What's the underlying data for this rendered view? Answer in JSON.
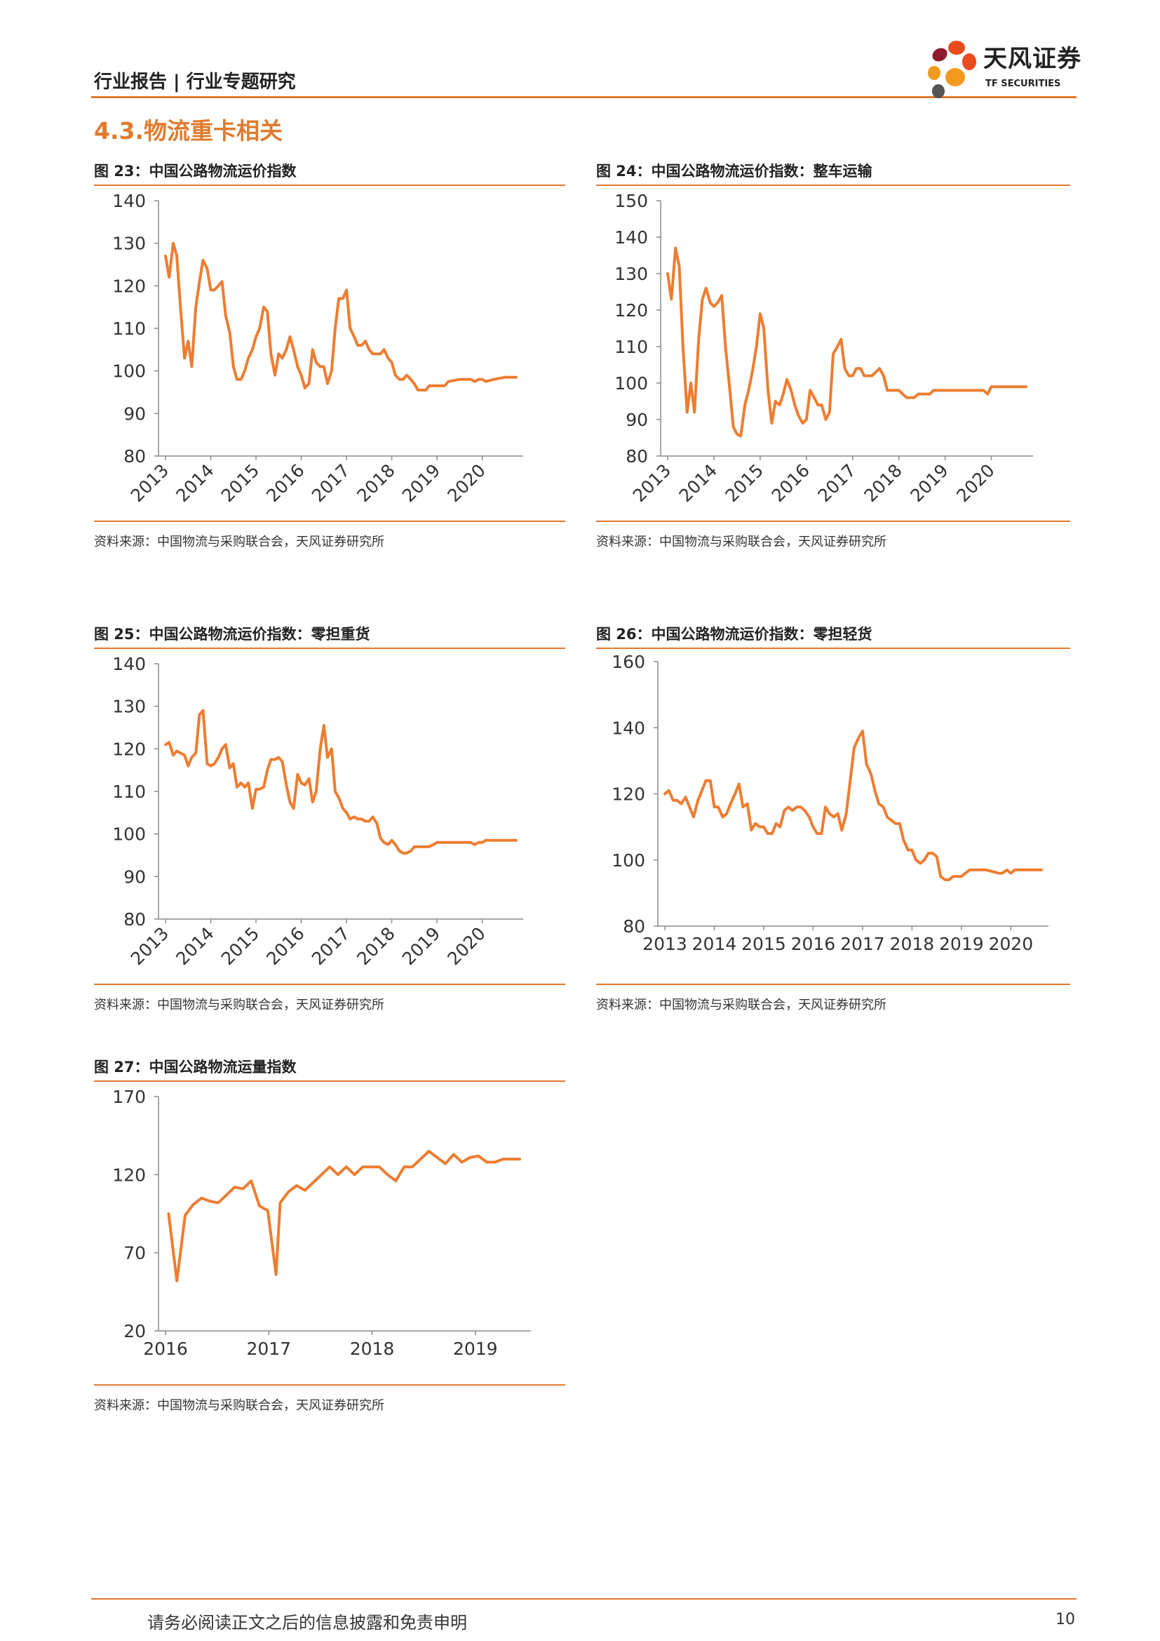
{
  "header": {
    "report_label": "行业报告 | 行业专题研究"
  },
  "logo": {
    "name_cn": "天风证券",
    "name_en": "TF SECURITIES",
    "petal_colors": [
      "#e84b1c",
      "#f39a1e",
      "#8e1c2e",
      "#555555"
    ]
  },
  "section_title": "4.3.物流重卡相关",
  "accent_color": "#e07a2e",
  "line_color": "#ed7d31",
  "figures": [
    {
      "title": "图 23：中国公路物流运价指数",
      "source": "资料来源：中国物流与采购联合会，天风证券研究所"
    },
    {
      "title": "图 24：中国公路物流运价指数：整车运输",
      "source": "资料来源：中国物流与采购联合会，天风证券研究所"
    },
    {
      "title": "图 25：中国公路物流运价指数：零担重货",
      "source": "资料来源：中国物流与采购联合会，天风证券研究所"
    },
    {
      "title": "图 26：中国公路物流运价指数：零担轻货",
      "source": "资料来源：中国物流与采购联合会，天风证券研究所"
    },
    {
      "title": "图 27：中国公路物流运量指数",
      "source": "资料来源：中国物流与采购联合会，天风证券研究所"
    }
  ],
  "chart_data": [
    {
      "type": "line",
      "title": "图 23：中国公路物流运价指数",
      "ylim": [
        80,
        140
      ],
      "yticks": [
        80,
        90,
        100,
        110,
        120,
        130,
        140
      ],
      "xlim": [
        2013,
        2020.75
      ],
      "xticks": [
        "2013",
        "2014",
        "2015",
        "2016",
        "2017",
        "2018",
        "2019",
        "2020"
      ],
      "xtick_rotation": -45,
      "grid": false,
      "x": [
        2013.0,
        2013.08,
        2013.17,
        2013.25,
        2013.33,
        2013.42,
        2013.5,
        2013.58,
        2013.67,
        2013.75,
        2013.83,
        2013.92,
        2014.0,
        2014.08,
        2014.17,
        2014.25,
        2014.33,
        2014.42,
        2014.5,
        2014.58,
        2014.67,
        2014.75,
        2014.83,
        2014.92,
        2015.0,
        2015.08,
        2015.17,
        2015.25,
        2015.33,
        2015.42,
        2015.5,
        2015.58,
        2015.67,
        2015.75,
        2015.83,
        2015.92,
        2016.0,
        2016.08,
        2016.17,
        2016.25,
        2016.33,
        2016.42,
        2016.5,
        2016.58,
        2016.67,
        2016.75,
        2016.83,
        2016.92,
        2017.0,
        2017.08,
        2017.17,
        2017.25,
        2017.33,
        2017.42,
        2017.5,
        2017.58,
        2017.67,
        2017.75,
        2017.83,
        2017.92,
        2018.0,
        2018.08,
        2018.17,
        2018.25,
        2018.33,
        2018.42,
        2018.5,
        2018.58,
        2018.67,
        2018.75,
        2018.83,
        2018.92,
        2019.0,
        2019.08,
        2019.17,
        2019.25,
        2019.5,
        2019.75,
        2019.83,
        2019.92,
        2020.0,
        2020.08,
        2020.25,
        2020.5,
        2020.75
      ],
      "series": [
        {
          "values": [
            127,
            122,
            130,
            127,
            115,
            103,
            107,
            101,
            115,
            121,
            126,
            124,
            119,
            119,
            120,
            121,
            113,
            109,
            101,
            98,
            98,
            100,
            103,
            105,
            108,
            110,
            115,
            114,
            104,
            99,
            104,
            103,
            105,
            108,
            105,
            101,
            99,
            96,
            97,
            105,
            102,
            101,
            101,
            97,
            100,
            110,
            117,
            117,
            119,
            110,
            108,
            106,
            106,
            107,
            105,
            104,
            104,
            104,
            105,
            103,
            102,
            99,
            98,
            98,
            99,
            98,
            97,
            95.5,
            95.5,
            95.5,
            96.5,
            96.5,
            96.5,
            96.5,
            96.5,
            97.5,
            98,
            98,
            97.5,
            98,
            98,
            97.5,
            98,
            98.5,
            98.5
          ]
        }
      ]
    },
    {
      "type": "line",
      "title": "图 24：中国公路物流运价指数：整车运输",
      "ylim": [
        80,
        150
      ],
      "yticks": [
        80,
        90,
        100,
        110,
        120,
        130,
        140,
        150
      ],
      "xlim": [
        2013,
        2020.75
      ],
      "xticks": [
        "2013",
        "2014",
        "2015",
        "2016",
        "2017",
        "2018",
        "2019",
        "2020"
      ],
      "xtick_rotation": -45,
      "grid": false,
      "x": [
        2013.0,
        2013.08,
        2013.17,
        2013.25,
        2013.33,
        2013.42,
        2013.5,
        2013.58,
        2013.67,
        2013.75,
        2013.83,
        2013.92,
        2014.0,
        2014.08,
        2014.17,
        2014.25,
        2014.33,
        2014.42,
        2014.5,
        2014.58,
        2014.67,
        2014.75,
        2014.83,
        2014.92,
        2015.0,
        2015.08,
        2015.17,
        2015.25,
        2015.33,
        2015.42,
        2015.5,
        2015.58,
        2015.67,
        2015.75,
        2015.83,
        2015.92,
        2016.0,
        2016.08,
        2016.17,
        2016.25,
        2016.33,
        2016.42,
        2016.5,
        2016.58,
        2016.67,
        2016.75,
        2016.83,
        2016.92,
        2017.0,
        2017.08,
        2017.17,
        2017.25,
        2017.33,
        2017.42,
        2017.5,
        2017.58,
        2017.67,
        2017.75,
        2017.83,
        2017.92,
        2018.0,
        2018.08,
        2018.17,
        2018.25,
        2018.33,
        2018.42,
        2018.5,
        2018.58,
        2018.67,
        2018.75,
        2018.83,
        2018.92,
        2019.0,
        2019.08,
        2019.17,
        2019.25,
        2019.5,
        2019.75,
        2019.83,
        2019.92,
        2020.0,
        2020.08,
        2020.25,
        2020.5,
        2020.75
      ],
      "series": [
        {
          "values": [
            130,
            123,
            137,
            132,
            110,
            92,
            100,
            92,
            112,
            123,
            126,
            122,
            121,
            122,
            124,
            110,
            100,
            88,
            86,
            85.5,
            94,
            98,
            103,
            110,
            119,
            115,
            98,
            89,
            95,
            94,
            97,
            101,
            98,
            94,
            91,
            89,
            90,
            98,
            96,
            94,
            94,
            90,
            92,
            108,
            110,
            112,
            104,
            102,
            102,
            104,
            104,
            102,
            102,
            102,
            103,
            104,
            102,
            98,
            98,
            98,
            98,
            97,
            96,
            96,
            96,
            97,
            97,
            97,
            97,
            98,
            98,
            98,
            98,
            98,
            98,
            98,
            98,
            98,
            98,
            97,
            99,
            99,
            99,
            99,
            99
          ]
        }
      ]
    },
    {
      "type": "line",
      "title": "图 25：中国公路物流运价指数：零担重货",
      "ylim": [
        80,
        140
      ],
      "yticks": [
        80,
        90,
        100,
        110,
        120,
        130,
        140
      ],
      "xlim": [
        2013,
        2020.75
      ],
      "xticks": [
        "2013",
        "2014",
        "2015",
        "2016",
        "2017",
        "2018",
        "2019",
        "2020"
      ],
      "xtick_rotation": -45,
      "grid": false,
      "x": [
        2013.0,
        2013.08,
        2013.17,
        2013.25,
        2013.33,
        2013.42,
        2013.5,
        2013.58,
        2013.67,
        2013.75,
        2013.83,
        2013.92,
        2014.0,
        2014.08,
        2014.17,
        2014.25,
        2014.33,
        2014.42,
        2014.5,
        2014.58,
        2014.67,
        2014.75,
        2014.83,
        2014.92,
        2015.0,
        2015.08,
        2015.17,
        2015.25,
        2015.33,
        2015.42,
        2015.5,
        2015.58,
        2015.67,
        2015.75,
        2015.83,
        2015.92,
        2016.0,
        2016.08,
        2016.17,
        2016.25,
        2016.33,
        2016.42,
        2016.5,
        2016.58,
        2016.67,
        2016.75,
        2016.83,
        2016.92,
        2017.0,
        2017.08,
        2017.17,
        2017.25,
        2017.33,
        2017.42,
        2017.5,
        2017.58,
        2017.67,
        2017.75,
        2017.83,
        2017.92,
        2018.0,
        2018.08,
        2018.17,
        2018.25,
        2018.33,
        2018.42,
        2018.5,
        2018.58,
        2018.67,
        2018.75,
        2018.83,
        2018.92,
        2019.0,
        2019.08,
        2019.17,
        2019.25,
        2019.5,
        2019.75,
        2019.83,
        2019.92,
        2020.0,
        2020.08,
        2020.25,
        2020.5,
        2020.75
      ],
      "series": [
        {
          "values": [
            121,
            121.5,
            118.5,
            119.5,
            119,
            118.5,
            116,
            118,
            119,
            128,
            129,
            116.5,
            116,
            116.5,
            118,
            120,
            121,
            115.5,
            116.5,
            111,
            112,
            111,
            112,
            106,
            110.5,
            110.5,
            111,
            115,
            117.5,
            117.5,
            118,
            117,
            111.5,
            107.5,
            106,
            114,
            112,
            111.5,
            113,
            107.5,
            110,
            120,
            125.5,
            118,
            120,
            110,
            108.5,
            106,
            105,
            103.5,
            104,
            103.5,
            103.5,
            103,
            103,
            104,
            102.5,
            99,
            98,
            97.5,
            98.5,
            97.5,
            96,
            95.5,
            95.5,
            96,
            97,
            97,
            97,
            97,
            97,
            97.5,
            98,
            98,
            98,
            98,
            98,
            98,
            97.5,
            98,
            98,
            98.5,
            98.5,
            98.5,
            98.5
          ]
        }
      ]
    },
    {
      "type": "line",
      "title": "图 26：中国公路物流运价指数：零担轻货",
      "ylim": [
        80,
        160
      ],
      "yticks": [
        80,
        100,
        120,
        140,
        160
      ],
      "xlim": [
        2013,
        2020.62
      ],
      "xticks": [
        "2013",
        "2014",
        "2015",
        "2016",
        "2017",
        "2018",
        "2019",
        "2020"
      ],
      "xtick_rotation": 0,
      "grid": false,
      "x": [
        2013.0,
        2013.08,
        2013.17,
        2013.25,
        2013.33,
        2013.42,
        2013.5,
        2013.58,
        2013.67,
        2013.75,
        2013.83,
        2013.92,
        2014.0,
        2014.08,
        2014.17,
        2014.25,
        2014.33,
        2014.42,
        2014.5,
        2014.58,
        2014.67,
        2014.75,
        2014.83,
        2014.92,
        2015.0,
        2015.08,
        2015.17,
        2015.25,
        2015.33,
        2015.42,
        2015.5,
        2015.58,
        2015.67,
        2015.75,
        2015.83,
        2015.92,
        2016.0,
        2016.08,
        2016.17,
        2016.25,
        2016.33,
        2016.42,
        2016.5,
        2016.58,
        2016.67,
        2016.75,
        2016.83,
        2016.92,
        2017.0,
        2017.08,
        2017.17,
        2017.25,
        2017.33,
        2017.42,
        2017.5,
        2017.58,
        2017.67,
        2017.75,
        2017.83,
        2017.92,
        2018.0,
        2018.08,
        2018.17,
        2018.25,
        2018.33,
        2018.42,
        2018.5,
        2018.58,
        2018.67,
        2018.75,
        2018.83,
        2018.92,
        2019.0,
        2019.08,
        2019.17,
        2019.25,
        2019.5,
        2019.75,
        2019.83,
        2019.92,
        2020.0,
        2020.08,
        2020.25,
        2020.62
      ],
      "series": [
        {
          "values": [
            120,
            121,
            118,
            118,
            117,
            119,
            116,
            113,
            118,
            121,
            124,
            124,
            116,
            116,
            113,
            114,
            117,
            120,
            123,
            116,
            117,
            109,
            111,
            110,
            110,
            108,
            108,
            111,
            110,
            115,
            116,
            115,
            116,
            116,
            115,
            113,
            110,
            108,
            108,
            116,
            114,
            113,
            114,
            109,
            114,
            124,
            134,
            137,
            139,
            129,
            126,
            121,
            117,
            116,
            113,
            112,
            111,
            111,
            106,
            103,
            103,
            100,
            99,
            100,
            102,
            102,
            101,
            95,
            94,
            94,
            95,
            95,
            95,
            96,
            97,
            97,
            97,
            96,
            96,
            97,
            96,
            97,
            97,
            97
          ]
        }
      ]
    },
    {
      "type": "line",
      "title": "图 27：中国公路物流运量指数",
      "ylim": [
        20,
        170
      ],
      "yticks": [
        20,
        70,
        120,
        170
      ],
      "xlim": [
        2016,
        2019.47
      ],
      "xticks": [
        "2016",
        "2017",
        "2018",
        "2019"
      ],
      "xtick_rotation": 0,
      "grid": false,
      "x": [
        2016.03,
        2016.11,
        2016.19,
        2016.27,
        2016.35,
        2016.43,
        2016.51,
        2016.59,
        2016.67,
        2016.75,
        2016.83,
        2016.91,
        2016.99,
        2017.07,
        2017.11,
        2017.19,
        2017.27,
        2017.35,
        2017.43,
        2017.51,
        2017.59,
        2017.67,
        2017.75,
        2017.83,
        2017.91,
        2017.99,
        2018.07,
        2018.15,
        2018.23,
        2018.31,
        2018.39,
        2018.47,
        2018.55,
        2018.63,
        2018.71,
        2018.79,
        2018.87,
        2018.95,
        2019.03,
        2019.11,
        2019.19,
        2019.27,
        2019.35,
        2019.43
      ],
      "series": [
        {
          "values": [
            95,
            52,
            94,
            101,
            105,
            103,
            102,
            107,
            112,
            111,
            116,
            100,
            97,
            56,
            102,
            109,
            113,
            110,
            115,
            120,
            125,
            120,
            125,
            120,
            125,
            125,
            125,
            120,
            116,
            125,
            125,
            130,
            135,
            131,
            127,
            133,
            128,
            131,
            132,
            128,
            128,
            130,
            130,
            130
          ]
        }
      ]
    }
  ]
}
